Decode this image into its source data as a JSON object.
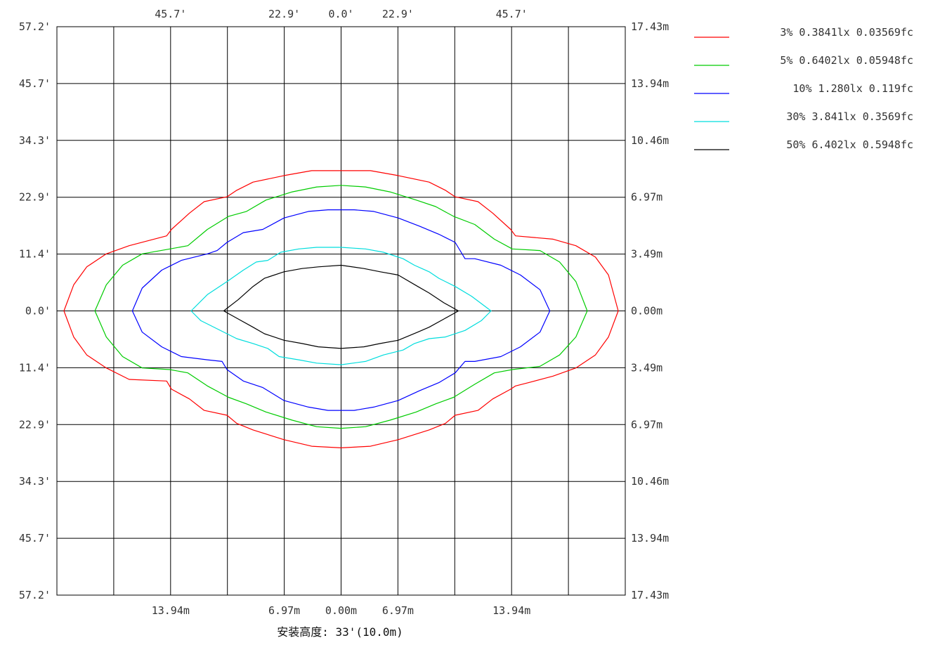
{
  "chart_data": {
    "type": "line",
    "title": "",
    "caption": "安装高度: 33'(10.0m)",
    "x_range_m": [
      -17.43,
      17.43
    ],
    "y_range_m": [
      -17.43,
      17.43
    ],
    "grid": true,
    "legend_position": "top-right",
    "ticks": {
      "top": [
        "45.7'",
        "22.9'",
        "0.0'",
        "22.9'",
        "45.7'"
      ],
      "bottom": [
        "13.94m",
        "6.97m",
        "0.00m",
        "6.97m",
        "13.94m"
      ],
      "left": [
        "57.2'",
        "45.7'",
        "34.3'",
        "22.9'",
        "11.4'",
        "0.0'",
        "11.4'",
        "22.9'",
        "34.3'",
        "45.7'",
        "57.2'"
      ],
      "right": [
        "17.43m",
        "13.94m",
        "10.46m",
        "6.97m",
        "3.49m",
        "0.00m",
        "3.49m",
        "6.97m",
        "10.46m",
        "13.94m",
        "17.43m"
      ]
    },
    "series": [
      {
        "name": "3% 0.3841lx 0.03569fc",
        "color": "#ff0000",
        "points": [
          [
            -17.0,
            0
          ],
          [
            -16.4,
            1.6
          ],
          [
            -15.6,
            2.7
          ],
          [
            -14.4,
            3.5
          ],
          [
            -13.0,
            4.0
          ],
          [
            -10.7,
            4.6
          ],
          [
            -10.4,
            5.0
          ],
          [
            -9.3,
            6.0
          ],
          [
            -8.4,
            6.7
          ],
          [
            -7.0,
            7.0
          ],
          [
            -6.4,
            7.4
          ],
          [
            -5.4,
            7.9
          ],
          [
            -3.5,
            8.3
          ],
          [
            -1.8,
            8.6
          ],
          [
            0,
            8.6
          ],
          [
            1.8,
            8.6
          ],
          [
            3.5,
            8.3
          ],
          [
            5.4,
            7.9
          ],
          [
            6.4,
            7.4
          ],
          [
            7.0,
            7.0
          ],
          [
            8.4,
            6.7
          ],
          [
            9.3,
            6.0
          ],
          [
            10.4,
            5.0
          ],
          [
            10.7,
            4.6
          ],
          [
            13.0,
            4.4
          ],
          [
            14.4,
            4.0
          ],
          [
            15.6,
            3.3
          ],
          [
            16.4,
            2.2
          ],
          [
            17.0,
            0
          ],
          [
            16.4,
            -1.6
          ],
          [
            15.6,
            -2.7
          ],
          [
            14.4,
            -3.5
          ],
          [
            13.0,
            -4.0
          ],
          [
            11.5,
            -4.4
          ],
          [
            10.7,
            -4.6
          ],
          [
            10.4,
            -4.8
          ],
          [
            9.3,
            -5.4
          ],
          [
            8.4,
            -6.1
          ],
          [
            7.0,
            -6.4
          ],
          [
            6.4,
            -6.9
          ],
          [
            5.4,
            -7.3
          ],
          [
            3.5,
            -7.9
          ],
          [
            1.8,
            -8.3
          ],
          [
            0,
            -8.4
          ],
          [
            -1.8,
            -8.3
          ],
          [
            -3.5,
            -7.9
          ],
          [
            -5.4,
            -7.3
          ],
          [
            -6.4,
            -6.9
          ],
          [
            -7.0,
            -6.4
          ],
          [
            -8.4,
            -6.1
          ],
          [
            -9.3,
            -5.4
          ],
          [
            -10.4,
            -4.8
          ],
          [
            -10.7,
            -4.3
          ],
          [
            -13.0,
            -4.2
          ],
          [
            -14.4,
            -3.5
          ],
          [
            -15.6,
            -2.7
          ],
          [
            -16.4,
            -1.6
          ],
          [
            -17.0,
            0
          ]
        ]
      },
      {
        "name": "5% 0.6402lx 0.05948fc",
        "color": "#00cc00",
        "points": [
          [
            -15.1,
            0
          ],
          [
            -14.4,
            1.6
          ],
          [
            -13.4,
            2.8
          ],
          [
            -12.2,
            3.5
          ],
          [
            -10.5,
            3.8
          ],
          [
            -9.4,
            4.0
          ],
          [
            -8.2,
            5.0
          ],
          [
            -6.9,
            5.8
          ],
          [
            -5.8,
            6.1
          ],
          [
            -4.6,
            6.8
          ],
          [
            -3.0,
            7.3
          ],
          [
            -1.5,
            7.6
          ],
          [
            0,
            7.7
          ],
          [
            1.5,
            7.6
          ],
          [
            3.0,
            7.3
          ],
          [
            4.6,
            6.8
          ],
          [
            5.8,
            6.4
          ],
          [
            6.9,
            5.8
          ],
          [
            8.2,
            5.3
          ],
          [
            9.4,
            4.4
          ],
          [
            10.5,
            3.8
          ],
          [
            12.2,
            3.7
          ],
          [
            13.4,
            3.0
          ],
          [
            14.4,
            1.8
          ],
          [
            15.1,
            0
          ],
          [
            14.4,
            -1.6
          ],
          [
            13.4,
            -2.7
          ],
          [
            12.2,
            -3.4
          ],
          [
            10.5,
            -3.6
          ],
          [
            9.4,
            -3.8
          ],
          [
            8.2,
            -4.5
          ],
          [
            6.9,
            -5.3
          ],
          [
            5.8,
            -5.7
          ],
          [
            4.6,
            -6.2
          ],
          [
            3.0,
            -6.7
          ],
          [
            1.5,
            -7.1
          ],
          [
            0,
            -7.2
          ],
          [
            -1.5,
            -7.1
          ],
          [
            -3.0,
            -6.7
          ],
          [
            -4.6,
            -6.2
          ],
          [
            -5.8,
            -5.7
          ],
          [
            -6.9,
            -5.3
          ],
          [
            -8.2,
            -4.6
          ],
          [
            -9.4,
            -3.8
          ],
          [
            -10.5,
            -3.6
          ],
          [
            -12.2,
            -3.5
          ],
          [
            -13.4,
            -2.8
          ],
          [
            -14.4,
            -1.6
          ],
          [
            -15.1,
            0
          ]
        ]
      },
      {
        "name": "10% 1.280lx 0.119fc",
        "color": "#0000ff",
        "points": [
          [
            -12.8,
            0
          ],
          [
            -12.2,
            1.4
          ],
          [
            -11.0,
            2.5
          ],
          [
            -9.8,
            3.1
          ],
          [
            -8.2,
            3.5
          ],
          [
            -7.6,
            3.7
          ],
          [
            -7.0,
            4.2
          ],
          [
            -6.0,
            4.8
          ],
          [
            -4.8,
            5.0
          ],
          [
            -3.5,
            5.7
          ],
          [
            -2.0,
            6.1
          ],
          [
            -0.8,
            6.2
          ],
          [
            0,
            6.2
          ],
          [
            0.8,
            6.2
          ],
          [
            2.0,
            6.1
          ],
          [
            3.5,
            5.7
          ],
          [
            4.8,
            5.2
          ],
          [
            6.0,
            4.7
          ],
          [
            7.0,
            4.2
          ],
          [
            7.6,
            3.2
          ],
          [
            8.2,
            3.2
          ],
          [
            9.8,
            2.8
          ],
          [
            11.0,
            2.2
          ],
          [
            12.2,
            1.3
          ],
          [
            12.8,
            0
          ],
          [
            12.2,
            -1.3
          ],
          [
            11.0,
            -2.2
          ],
          [
            9.8,
            -2.8
          ],
          [
            8.2,
            -3.1
          ],
          [
            7.6,
            -3.1
          ],
          [
            7.0,
            -3.8
          ],
          [
            6.0,
            -4.4
          ],
          [
            4.8,
            -4.9
          ],
          [
            3.5,
            -5.5
          ],
          [
            2.0,
            -5.9
          ],
          [
            0.8,
            -6.1
          ],
          [
            0,
            -6.1
          ],
          [
            -0.8,
            -6.1
          ],
          [
            -2.0,
            -5.9
          ],
          [
            -3.5,
            -5.5
          ],
          [
            -4.8,
            -4.7
          ],
          [
            -6.0,
            -4.3
          ],
          [
            -7.0,
            -3.6
          ],
          [
            -7.3,
            -3.1
          ],
          [
            -8.2,
            -3.0
          ],
          [
            -9.8,
            -2.8
          ],
          [
            -11.0,
            -2.2
          ],
          [
            -12.2,
            -1.3
          ],
          [
            -12.8,
            0
          ]
        ]
      },
      {
        "name": "30% 3.841lx 0.3569fc",
        "color": "#00dddd",
        "points": [
          [
            -9.2,
            0
          ],
          [
            -8.2,
            1.0
          ],
          [
            -7.0,
            1.8
          ],
          [
            -6.0,
            2.5
          ],
          [
            -5.2,
            3.0
          ],
          [
            -4.5,
            3.1
          ],
          [
            -3.7,
            3.6
          ],
          [
            -2.6,
            3.8
          ],
          [
            -1.5,
            3.9
          ],
          [
            0,
            3.9
          ],
          [
            1.5,
            3.8
          ],
          [
            2.6,
            3.6
          ],
          [
            3.8,
            3.2
          ],
          [
            4.5,
            2.8
          ],
          [
            5.4,
            2.4
          ],
          [
            6.0,
            2.0
          ],
          [
            7.0,
            1.5
          ],
          [
            8.0,
            0.9
          ],
          [
            9.2,
            0
          ],
          [
            8.6,
            -0.6
          ],
          [
            7.6,
            -1.2
          ],
          [
            6.4,
            -1.6
          ],
          [
            5.4,
            -1.7
          ],
          [
            4.5,
            -2.0
          ],
          [
            3.8,
            -2.4
          ],
          [
            2.6,
            -2.7
          ],
          [
            1.5,
            -3.1
          ],
          [
            0,
            -3.3
          ],
          [
            -1.5,
            -3.2
          ],
          [
            -2.6,
            -3.0
          ],
          [
            -3.8,
            -2.8
          ],
          [
            -4.5,
            -2.3
          ],
          [
            -5.4,
            -2.0
          ],
          [
            -6.4,
            -1.7
          ],
          [
            -7.6,
            -1.1
          ],
          [
            -8.6,
            -0.6
          ],
          [
            -9.2,
            0
          ]
        ]
      },
      {
        "name": "50% 6.402lx 0.5948fc",
        "color": "#000000",
        "points": [
          [
            -7.2,
            0
          ],
          [
            -6.3,
            0.7
          ],
          [
            -5.4,
            1.5
          ],
          [
            -4.7,
            2.0
          ],
          [
            -3.5,
            2.4
          ],
          [
            -2.4,
            2.6
          ],
          [
            -1.4,
            2.7
          ],
          [
            0,
            2.8
          ],
          [
            1.4,
            2.6
          ],
          [
            2.4,
            2.4
          ],
          [
            3.5,
            2.2
          ],
          [
            4.7,
            1.5
          ],
          [
            5.4,
            1.1
          ],
          [
            6.3,
            0.5
          ],
          [
            7.2,
            0
          ],
          [
            6.3,
            -0.5
          ],
          [
            5.4,
            -1.0
          ],
          [
            4.7,
            -1.3
          ],
          [
            3.5,
            -1.8
          ],
          [
            2.4,
            -2.0
          ],
          [
            1.4,
            -2.2
          ],
          [
            0,
            -2.3
          ],
          [
            -1.4,
            -2.2
          ],
          [
            -2.4,
            -2.0
          ],
          [
            -3.5,
            -1.8
          ],
          [
            -4.7,
            -1.4
          ],
          [
            -5.4,
            -1.0
          ],
          [
            -6.3,
            -0.5
          ],
          [
            -7.2,
            0
          ]
        ]
      }
    ]
  }
}
